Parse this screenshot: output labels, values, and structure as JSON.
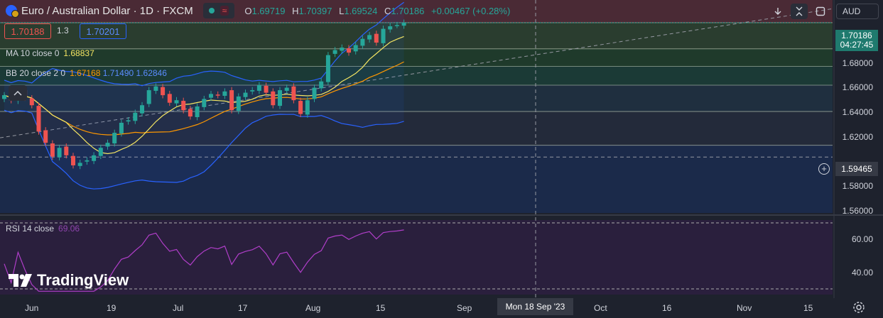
{
  "header": {
    "title": "Euro / Australian Dollar · 1D · FXCM",
    "ohlc": [
      {
        "k": "O",
        "v": "1.69719"
      },
      {
        "k": "H",
        "v": "1.70397"
      },
      {
        "k": "L",
        "v": "1.69524"
      },
      {
        "k": "C",
        "v": "1.70186"
      }
    ],
    "change": "+0.00467 (+0.28%)"
  },
  "trade": {
    "sell": "1.70188",
    "spread": "1.3",
    "buy": "1.70201"
  },
  "indicators": {
    "ma": {
      "label": "MA 10 close 0",
      "value": "1.68837"
    },
    "bb": {
      "label": "BB 20 close 2 0",
      "basis": "1.67168",
      "upper": "1.71490",
      "lower": "1.62846"
    },
    "rsi": {
      "label": "RSI 14 close",
      "value": "69.06"
    }
  },
  "toolbar": {
    "currency": "AUD"
  },
  "price_axis": {
    "last": "1.70186",
    "countdown": "04:27:45",
    "crosshair": "1.59465",
    "ticks": [
      "1.68000",
      "1.66000",
      "1.64000",
      "1.62000",
      "1.58000",
      "1.56000"
    ],
    "rsi_ticks": [
      "60.00",
      "40.00"
    ]
  },
  "time_axis": {
    "ticks": [
      "Jun",
      "19",
      "Jul",
      "17",
      "Aug",
      "15",
      "Sep",
      "Oct",
      "16",
      "Nov",
      "15"
    ],
    "crosshair": "Mon 18 Sep '23"
  },
  "branding": {
    "logo": "TradingView"
  },
  "colors": {
    "up": "#26a69a",
    "down": "#ef5350",
    "ma": "#f5e663",
    "bb_basis": "#ff9800",
    "bb_bands": "#2962ff",
    "rsi": "#b03ec9",
    "bg": "#1e222d"
  },
  "chart_data": {
    "type": "candlestick",
    "x": [
      "2023-06-01",
      "2023-06-02",
      "2023-06-05",
      "2023-06-06",
      "2023-06-07",
      "2023-06-08",
      "2023-06-09",
      "2023-06-12",
      "2023-06-13",
      "2023-06-14",
      "2023-06-15",
      "2023-06-16",
      "2023-06-19",
      "2023-06-20",
      "2023-06-21",
      "2023-06-22",
      "2023-06-23",
      "2023-06-26",
      "2023-06-27",
      "2023-06-28",
      "2023-06-29",
      "2023-06-30",
      "2023-07-03",
      "2023-07-04",
      "2023-07-05",
      "2023-07-06",
      "2023-07-07",
      "2023-07-10",
      "2023-07-11",
      "2023-07-12",
      "2023-07-13",
      "2023-07-14",
      "2023-07-17",
      "2023-07-18",
      "2023-07-19",
      "2023-07-20",
      "2023-07-21",
      "2023-07-24",
      "2023-07-25",
      "2023-07-26",
      "2023-07-27",
      "2023-07-28",
      "2023-07-31",
      "2023-08-01",
      "2023-08-02",
      "2023-08-03",
      "2023-08-04",
      "2023-08-07",
      "2023-08-08",
      "2023-08-09",
      "2023-08-10",
      "2023-08-11",
      "2023-08-14",
      "2023-08-15",
      "2023-08-16",
      "2023-08-17",
      "2023-08-18",
      "2023-08-21",
      "2023-08-22"
    ],
    "close": [
      1.644,
      1.64,
      1.647,
      1.642,
      1.636,
      1.615,
      1.606,
      1.595,
      1.602,
      1.596,
      1.588,
      1.59,
      1.592,
      1.596,
      1.602,
      1.606,
      1.614,
      1.622,
      1.624,
      1.63,
      1.636,
      1.648,
      1.651,
      1.644,
      1.638,
      1.64,
      1.632,
      1.627,
      1.635,
      1.641,
      1.645,
      1.644,
      1.647,
      1.632,
      1.643,
      1.646,
      1.648,
      1.652,
      1.646,
      1.636,
      1.648,
      1.65,
      1.64,
      1.629,
      1.64,
      1.65,
      1.655,
      1.676,
      1.68,
      1.682,
      1.678,
      1.684,
      1.689,
      1.692,
      1.686,
      1.697,
      1.699,
      1.7,
      1.7019
    ],
    "bb_upper": 1.7149,
    "bb_basis": 1.67168,
    "bb_lower": 1.62846,
    "ma": 1.68837,
    "rsi_last": 69.06,
    "y_axis": [
      1.55,
      1.72
    ],
    "rsi_axis": [
      30,
      75
    ]
  }
}
